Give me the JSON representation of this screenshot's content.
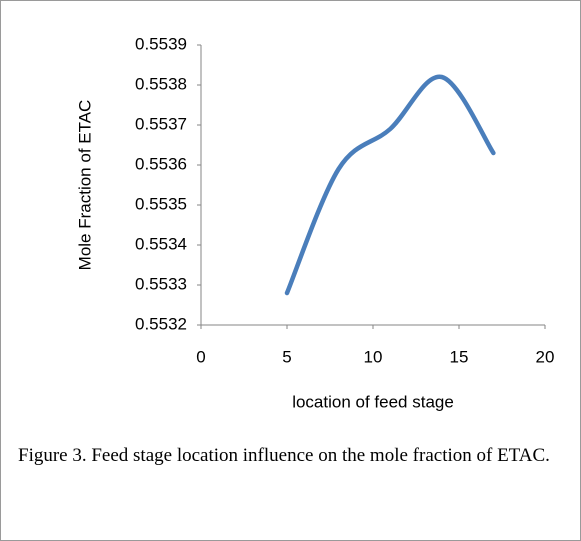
{
  "chart_data": {
    "type": "line",
    "x_label": "location of feed stage",
    "y_label": "Mole Fraction of ETAC",
    "caption": "Figure 3. Feed stage location influence on the mole fraction of ETAC.",
    "x": [
      5,
      8,
      11,
      14,
      17
    ],
    "series": [
      {
        "color": "#4a7ebb",
        "values": [
          0.55328,
          0.55359,
          0.55369,
          0.55382,
          0.55363
        ]
      }
    ],
    "xlim": [
      0,
      20
    ],
    "xticks": [
      0,
      5,
      10,
      15,
      20
    ],
    "ylim": [
      0.5532,
      0.5539
    ],
    "yticks": [
      0.5532,
      0.5533,
      0.5534,
      0.5535,
      0.5536,
      0.5537,
      0.5538,
      0.5539
    ],
    "grid": false
  }
}
